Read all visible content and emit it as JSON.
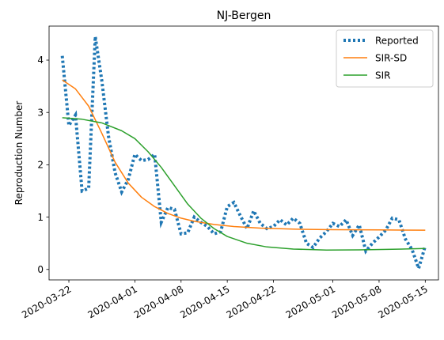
{
  "chart_data": {
    "type": "line",
    "title": "NJ-Bergen",
    "xlabel": "",
    "ylabel": "Reproduction Number",
    "x_ticks": [
      "2020-03-22",
      "2020-04-01",
      "2020-04-08",
      "2020-04-15",
      "2020-04-22",
      "2020-05-01",
      "2020-05-08",
      "2020-05-15"
    ],
    "y_ticks": [
      0,
      1,
      2,
      3,
      4
    ],
    "xlim": [
      "2020-03-19",
      "2020-05-17"
    ],
    "ylim": [
      -0.2,
      4.65
    ],
    "grid": false,
    "legend_position": "top-right",
    "series": [
      {
        "name": "Reported",
        "style": "dotted",
        "color": "#1f77b4",
        "points": [
          [
            "2020-03-21",
            4.08
          ],
          [
            "2020-03-22",
            2.75
          ],
          [
            "2020-03-23",
            2.95
          ],
          [
            "2020-03-24",
            1.5
          ],
          [
            "2020-03-25",
            1.55
          ],
          [
            "2020-03-26",
            4.45
          ],
          [
            "2020-03-27",
            3.6
          ],
          [
            "2020-03-28",
            2.55
          ],
          [
            "2020-03-29",
            1.85
          ],
          [
            "2020-03-30",
            1.48
          ],
          [
            "2020-03-31",
            1.72
          ],
          [
            "2020-04-01",
            2.2
          ],
          [
            "2020-04-02",
            2.08
          ],
          [
            "2020-04-03",
            2.1
          ],
          [
            "2020-04-04",
            2.2
          ],
          [
            "2020-04-05",
            0.9
          ],
          [
            "2020-04-06",
            1.18
          ],
          [
            "2020-04-07",
            1.15
          ],
          [
            "2020-04-08",
            0.68
          ],
          [
            "2020-04-09",
            0.7
          ],
          [
            "2020-04-10",
            1.0
          ],
          [
            "2020-04-11",
            0.9
          ],
          [
            "2020-04-12",
            0.82
          ],
          [
            "2020-04-13",
            0.68
          ],
          [
            "2020-04-14",
            0.72
          ],
          [
            "2020-04-15",
            1.2
          ],
          [
            "2020-04-16",
            1.28
          ],
          [
            "2020-04-17",
            1.02
          ],
          [
            "2020-04-18",
            0.78
          ],
          [
            "2020-04-19",
            1.12
          ],
          [
            "2020-04-20",
            0.88
          ],
          [
            "2020-04-21",
            0.78
          ],
          [
            "2020-04-22",
            0.82
          ],
          [
            "2020-04-23",
            0.95
          ],
          [
            "2020-04-24",
            0.85
          ],
          [
            "2020-04-25",
            0.98
          ],
          [
            "2020-04-26",
            0.88
          ],
          [
            "2020-04-27",
            0.5
          ],
          [
            "2020-04-28",
            0.42
          ],
          [
            "2020-04-29",
            0.6
          ],
          [
            "2020-04-30",
            0.72
          ],
          [
            "2020-05-01",
            0.88
          ],
          [
            "2020-05-02",
            0.82
          ],
          [
            "2020-05-03",
            0.95
          ],
          [
            "2020-05-04",
            0.65
          ],
          [
            "2020-05-05",
            0.85
          ],
          [
            "2020-05-06",
            0.35
          ],
          [
            "2020-05-07",
            0.5
          ],
          [
            "2020-05-08",
            0.62
          ],
          [
            "2020-05-09",
            0.75
          ],
          [
            "2020-05-10",
            0.98
          ],
          [
            "2020-05-11",
            0.95
          ],
          [
            "2020-05-12",
            0.58
          ],
          [
            "2020-05-13",
            0.38
          ],
          [
            "2020-05-14",
            0.02
          ],
          [
            "2020-05-15",
            0.45
          ]
        ]
      },
      {
        "name": "SIR-SD",
        "style": "solid",
        "color": "#ff7f0e",
        "points": [
          [
            "2020-03-21",
            3.62
          ],
          [
            "2020-03-23",
            3.45
          ],
          [
            "2020-03-25",
            3.12
          ],
          [
            "2020-03-27",
            2.6
          ],
          [
            "2020-03-29",
            2.05
          ],
          [
            "2020-03-31",
            1.65
          ],
          [
            "2020-04-02",
            1.38
          ],
          [
            "2020-04-04",
            1.2
          ],
          [
            "2020-04-06",
            1.07
          ],
          [
            "2020-04-08",
            0.98
          ],
          [
            "2020-04-10",
            0.92
          ],
          [
            "2020-04-13",
            0.86
          ],
          [
            "2020-04-16",
            0.82
          ],
          [
            "2020-04-20",
            0.79
          ],
          [
            "2020-04-25",
            0.77
          ],
          [
            "2020-05-01",
            0.76
          ],
          [
            "2020-05-08",
            0.755
          ],
          [
            "2020-05-15",
            0.75
          ]
        ]
      },
      {
        "name": "SIR",
        "style": "solid",
        "color": "#2ca02c",
        "points": [
          [
            "2020-03-21",
            2.9
          ],
          [
            "2020-03-24",
            2.87
          ],
          [
            "2020-03-27",
            2.8
          ],
          [
            "2020-03-30",
            2.65
          ],
          [
            "2020-04-01",
            2.5
          ],
          [
            "2020-04-03",
            2.25
          ],
          [
            "2020-04-05",
            1.95
          ],
          [
            "2020-04-07",
            1.6
          ],
          [
            "2020-04-09",
            1.25
          ],
          [
            "2020-04-11",
            0.98
          ],
          [
            "2020-04-13",
            0.78
          ],
          [
            "2020-04-15",
            0.63
          ],
          [
            "2020-04-18",
            0.5
          ],
          [
            "2020-04-21",
            0.43
          ],
          [
            "2020-04-25",
            0.39
          ],
          [
            "2020-04-30",
            0.37
          ],
          [
            "2020-05-05",
            0.375
          ],
          [
            "2020-05-10",
            0.385
          ],
          [
            "2020-05-15",
            0.4
          ]
        ]
      }
    ]
  }
}
